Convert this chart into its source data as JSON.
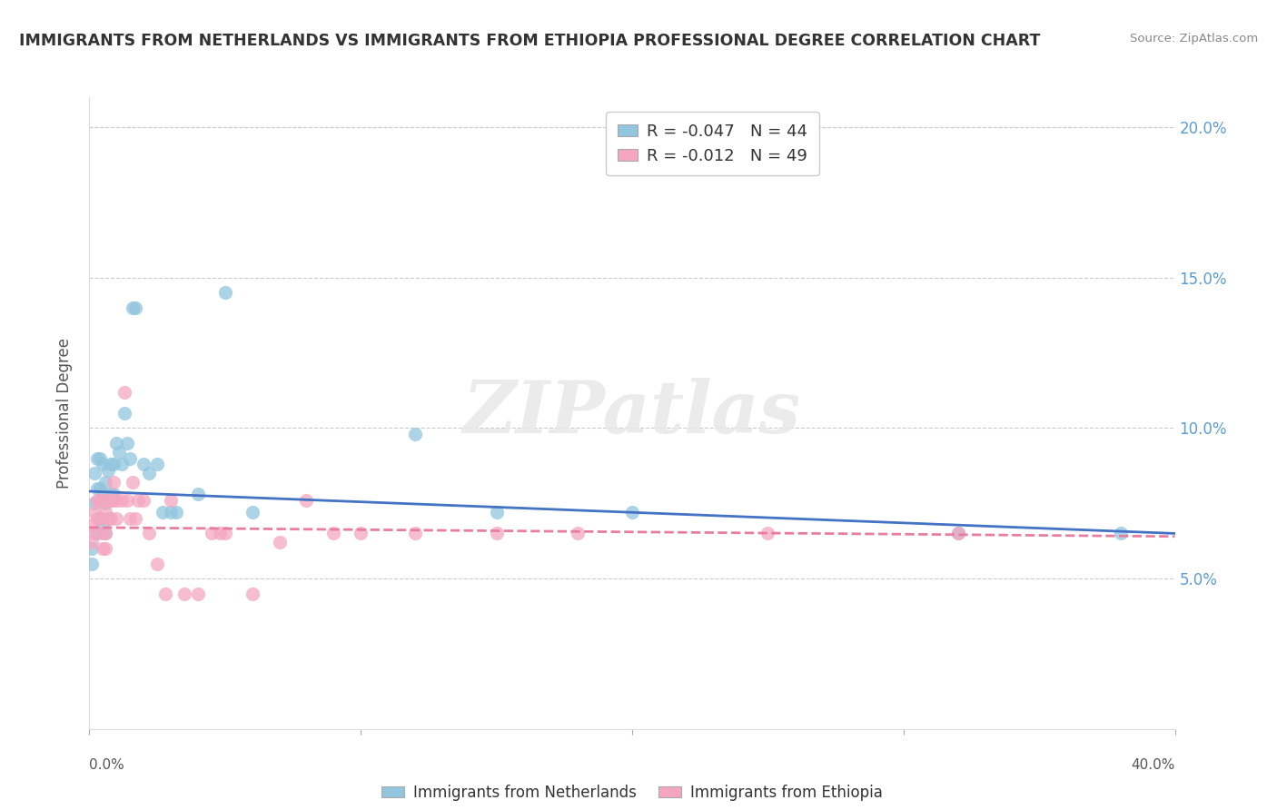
{
  "title": "IMMIGRANTS FROM NETHERLANDS VS IMMIGRANTS FROM ETHIOPIA PROFESSIONAL DEGREE CORRELATION CHART",
  "source": "Source: ZipAtlas.com",
  "ylabel": "Professional Degree",
  "watermark": "ZIPatlas",
  "xmin": 0.0,
  "xmax": 0.4,
  "ymin": 0.0,
  "ymax": 0.21,
  "yticks": [
    0.05,
    0.1,
    0.15,
    0.2
  ],
  "right_ytick_labels": [
    "5.0%",
    "10.0%",
    "15.0%",
    "20.0%"
  ],
  "color_blue": "#92c5de",
  "color_pink": "#f4a6c0",
  "legend_blue_label": "R = -0.047   N = 44",
  "legend_pink_label": "R = -0.012   N = 49",
  "trend_blue_x0": 0.0,
  "trend_blue_x1": 0.4,
  "trend_blue_y0": 0.079,
  "trend_blue_y1": 0.065,
  "trend_pink_x0": 0.0,
  "trend_pink_x1": 0.4,
  "trend_pink_y0": 0.067,
  "trend_pink_y1": 0.064,
  "blue_x": [
    0.001,
    0.001,
    0.002,
    0.002,
    0.003,
    0.003,
    0.003,
    0.004,
    0.004,
    0.004,
    0.005,
    0.005,
    0.005,
    0.006,
    0.006,
    0.006,
    0.007,
    0.007,
    0.008,
    0.008,
    0.009,
    0.009,
    0.01,
    0.011,
    0.012,
    0.013,
    0.014,
    0.015,
    0.016,
    0.017,
    0.02,
    0.022,
    0.025,
    0.027,
    0.03,
    0.032,
    0.04,
    0.05,
    0.06,
    0.12,
    0.15,
    0.2,
    0.32,
    0.38
  ],
  "blue_y": [
    0.06,
    0.055,
    0.085,
    0.075,
    0.09,
    0.08,
    0.065,
    0.09,
    0.08,
    0.07,
    0.088,
    0.078,
    0.068,
    0.082,
    0.075,
    0.065,
    0.086,
    0.076,
    0.088,
    0.078,
    0.088,
    0.078,
    0.095,
    0.092,
    0.088,
    0.105,
    0.095,
    0.09,
    0.14,
    0.14,
    0.088,
    0.085,
    0.088,
    0.072,
    0.072,
    0.072,
    0.078,
    0.145,
    0.072,
    0.098,
    0.072,
    0.072,
    0.065,
    0.065
  ],
  "pink_x": [
    0.001,
    0.001,
    0.002,
    0.002,
    0.003,
    0.003,
    0.004,
    0.004,
    0.005,
    0.005,
    0.005,
    0.006,
    0.006,
    0.006,
    0.007,
    0.007,
    0.008,
    0.008,
    0.009,
    0.009,
    0.01,
    0.01,
    0.012,
    0.013,
    0.014,
    0.015,
    0.016,
    0.017,
    0.018,
    0.02,
    0.022,
    0.025,
    0.028,
    0.03,
    0.035,
    0.04,
    0.045,
    0.048,
    0.05,
    0.06,
    0.07,
    0.08,
    0.09,
    0.1,
    0.12,
    0.15,
    0.18,
    0.25,
    0.32
  ],
  "pink_y": [
    0.068,
    0.062,
    0.072,
    0.065,
    0.076,
    0.07,
    0.076,
    0.07,
    0.076,
    0.065,
    0.06,
    0.072,
    0.065,
    0.06,
    0.076,
    0.07,
    0.076,
    0.07,
    0.082,
    0.076,
    0.076,
    0.07,
    0.076,
    0.112,
    0.076,
    0.07,
    0.082,
    0.07,
    0.076,
    0.076,
    0.065,
    0.055,
    0.045,
    0.076,
    0.045,
    0.045,
    0.065,
    0.065,
    0.065,
    0.045,
    0.062,
    0.076,
    0.065,
    0.065,
    0.065,
    0.065,
    0.065,
    0.065,
    0.065
  ]
}
